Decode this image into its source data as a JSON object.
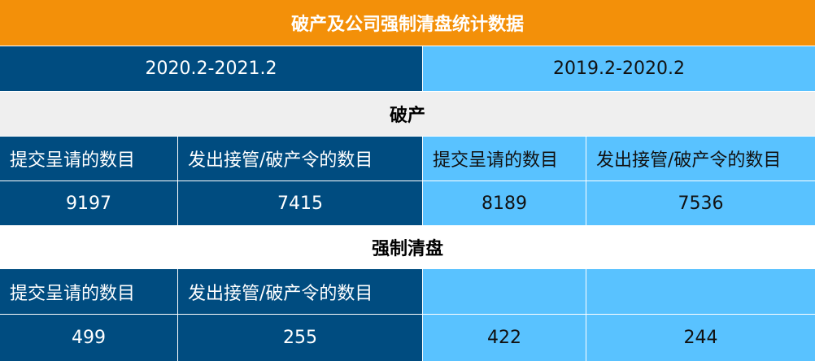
{
  "title": "破产及公司强制清盘统计数据",
  "periods": [
    "2020.2-2021.2",
    "2019.2-2020.2"
  ],
  "sections": [
    {
      "label": "破产",
      "headers": [
        "提交呈请的数目",
        "发出接管/破产令的数目",
        "提交呈请的数目",
        "发出接管/破产令的数目"
      ],
      "values": [
        "9197",
        "7415",
        "8189",
        "7536"
      ]
    },
    {
      "label": "强制清盘",
      "headers": [
        "提交呈请的数目",
        "发出接管/破产令的数目",
        "",
        ""
      ],
      "values": [
        "499",
        "255",
        "422",
        "244"
      ]
    }
  ],
  "colors": {
    "title": "#F39009",
    "dark": "#004C80",
    "light": "#59C2FF",
    "section": "#EFEFEF"
  }
}
